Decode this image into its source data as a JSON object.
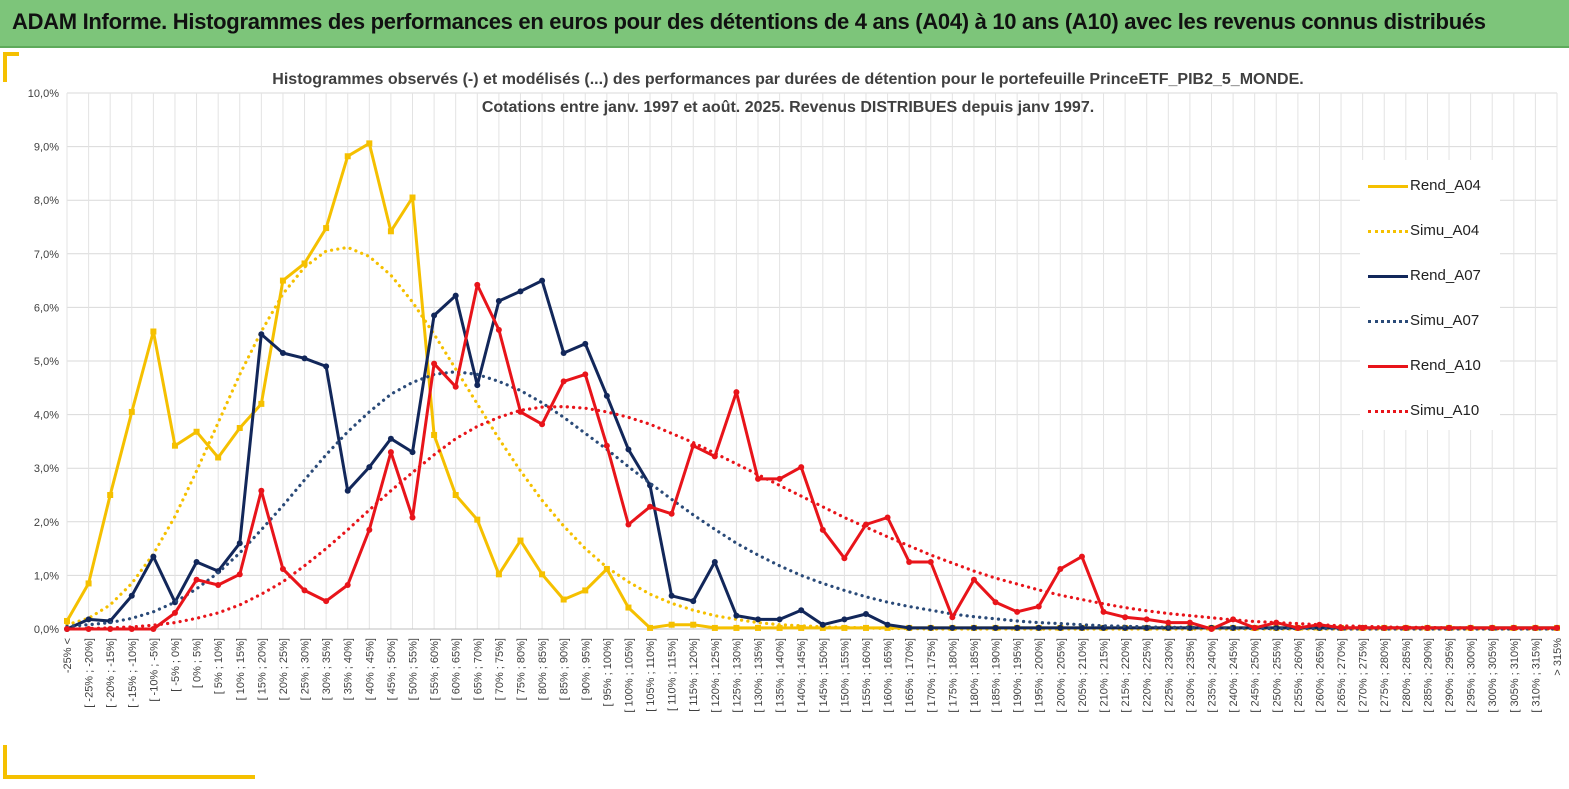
{
  "banner": {
    "title": "ADAM Informe. Histogrammes des performances en euros pour des détentions de 4 ans (A04) à 10 ans (A10) avec les revenus connus distribués"
  },
  "chart_data": {
    "type": "line",
    "title": "Histogrammes observés (-) et modélisés (...) des performances par durées de détention pour le portefeuille PrinceETF_PIB2_5_MONDE.",
    "subtitle": "Cotations entre janv. 1997 et août. 2025. Revenus DISTRIBUES depuis janv 1997.",
    "xlabel": "",
    "ylabel": "",
    "ylim": [
      0,
      10
    ],
    "yticks": [
      "0,0%",
      "1,0%",
      "2,0%",
      "3,0%",
      "4,0%",
      "5,0%",
      "6,0%",
      "7,0%",
      "8,0%",
      "9,0%",
      "10,0%"
    ],
    "grid": true,
    "legend_position": "right",
    "categories": [
      "-25% <",
      "[ -25% ; -20%]",
      "[ -20% ; -15%]",
      "[ -15% ; -10%]",
      "[ -10% ; -5%]",
      "[ -5% ; 0%]",
      "[ 0% ; 5%]",
      "[ 5% ; 10%]",
      "[ 10% ; 15%]",
      "[ 15% ; 20%]",
      "[ 20% ; 25%]",
      "[ 25% ; 30%]",
      "[ 30% ; 35%]",
      "[ 35% ; 40%]",
      "[ 40% ; 45%]",
      "[ 45% ; 50%]",
      "[ 50% ; 55%]",
      "[ 55% ; 60%]",
      "[ 60% ; 65%]",
      "[ 65% ; 70%]",
      "[ 70% ; 75%]",
      "[ 75% ; 80%]",
      "[ 80% ; 85%]",
      "[ 85% ; 90%]",
      "[ 90% ; 95%]",
      "[ 95% ; 100%]",
      "[ 100% ; 105%]",
      "[ 105% ; 110%]",
      "[ 110% ; 115%]",
      "[ 115% ; 120%]",
      "[ 120% ; 125%]",
      "[ 125% ; 130%]",
      "[ 130% ; 135%]",
      "[ 135% ; 140%]",
      "[ 140% ; 145%]",
      "[ 145% ; 150%]",
      "[ 150% ; 155%]",
      "[ 155% ; 160%]",
      "[ 160% ; 165%]",
      "[ 165% ; 170%]",
      "[ 170% ; 175%]",
      "[ 175% ; 180%]",
      "[ 180% ; 185%]",
      "[ 185% ; 190%]",
      "[ 190% ; 195%]",
      "[ 195% ; 200%]",
      "[ 200% ; 205%]",
      "[ 205% ; 210%]",
      "[ 210% ; 215%]",
      "[ 215% ; 220%]",
      "[ 220% ; 225%]",
      "[ 225% ; 230%]",
      "[ 230% ; 235%]",
      "[ 235% ; 240%]",
      "[ 240% ; 245%]",
      "[ 245% ; 250%]",
      "[ 250% ; 255%]",
      "[ 255% ; 260%]",
      "[ 260% ; 265%]",
      "[ 265% ; 270%]",
      "[ 270% ; 275%]",
      "[ 275% ; 280%]",
      "[ 280% ; 285%]",
      "[ 285% ; 290%]",
      "[ 290% ; 295%]",
      "[ 295% ; 300%]",
      "[ 300% ; 305%]",
      "[ 305% ; 310%]",
      "[ 310% ; 315%]",
      "> 315%"
    ],
    "series": [
      {
        "name": "Rend_A04",
        "color": "#f5c000",
        "style": "solid",
        "marker": "square",
        "values": [
          0.15,
          0.85,
          2.5,
          4.05,
          5.55,
          3.42,
          3.68,
          3.2,
          3.75,
          4.2,
          6.5,
          6.82,
          7.48,
          8.82,
          9.06,
          7.42,
          8.05,
          3.62,
          2.5,
          2.04,
          1.02,
          1.65,
          1.02,
          0.55,
          0.72,
          1.12,
          0.4,
          0.02,
          0.08,
          0.08,
          0.02,
          0.02,
          0.02,
          0.02,
          0.02,
          0.02,
          0.02,
          0.02,
          0.02,
          0.02,
          0.02,
          0.02,
          0.02,
          0.02,
          0.02,
          0.02,
          0.02,
          0.02,
          0.02,
          0.02,
          0.02,
          0.02,
          0.02,
          0.02,
          0.02,
          0.02,
          0.02,
          0.02,
          0.02,
          0.02,
          0.02,
          0.02,
          0.02,
          0.02,
          0.02,
          0.02,
          0.02,
          0.02,
          0.02,
          0.02
        ]
      },
      {
        "name": "Simu_A04",
        "color": "#f5c000",
        "style": "dotted",
        "values": [
          0.08,
          0.2,
          0.45,
          0.85,
          1.4,
          2.1,
          2.95,
          3.85,
          4.75,
          5.55,
          6.25,
          6.75,
          7.05,
          7.12,
          6.95,
          6.6,
          6.1,
          5.5,
          4.85,
          4.2,
          3.55,
          2.95,
          2.4,
          1.92,
          1.5,
          1.15,
          0.88,
          0.65,
          0.48,
          0.35,
          0.25,
          0.18,
          0.12,
          0.08,
          0.06,
          0.04,
          0.03,
          0.02,
          0.01,
          0.01,
          0.0,
          0.0,
          0.0,
          0.0,
          0.0,
          0.0,
          0.0,
          0.0,
          0.0,
          0.0,
          0.0,
          0.0,
          0.0,
          0.0,
          0.0,
          0.0,
          0.0,
          0.0,
          0.0,
          0.0,
          0.0,
          0.0,
          0.0,
          0.0,
          0.0,
          0.0,
          0.0,
          0.0,
          0.0,
          0.0
        ]
      },
      {
        "name": "Rend_A07",
        "color": "#12275a",
        "style": "solid",
        "marker": "circle",
        "values": [
          0.0,
          0.18,
          0.15,
          0.62,
          1.35,
          0.5,
          1.25,
          1.08,
          1.6,
          5.5,
          5.15,
          5.05,
          4.9,
          2.58,
          3.02,
          3.55,
          3.3,
          5.85,
          6.22,
          4.55,
          6.12,
          6.3,
          6.5,
          5.15,
          5.32,
          4.35,
          3.35,
          2.68,
          0.62,
          0.52,
          1.25,
          0.25,
          0.18,
          0.18,
          0.35,
          0.08,
          0.18,
          0.28,
          0.08,
          0.02,
          0.02,
          0.02,
          0.02,
          0.02,
          0.02,
          0.02,
          0.02,
          0.02,
          0.02,
          0.02,
          0.02,
          0.02,
          0.02,
          0.02,
          0.02,
          0.02,
          0.02,
          0.02,
          0.02,
          0.02,
          0.02,
          0.02,
          0.02,
          0.02,
          0.02,
          0.02,
          0.02,
          0.02,
          0.02,
          0.02
        ]
      },
      {
        "name": "Simu_A07",
        "color": "#2a4a78",
        "style": "dotted",
        "values": [
          0.05,
          0.08,
          0.12,
          0.2,
          0.32,
          0.5,
          0.75,
          1.05,
          1.42,
          1.85,
          2.3,
          2.78,
          3.25,
          3.68,
          4.05,
          4.38,
          4.6,
          4.75,
          4.8,
          4.75,
          4.62,
          4.45,
          4.22,
          3.95,
          3.65,
          3.35,
          3.03,
          2.72,
          2.42,
          2.13,
          1.86,
          1.6,
          1.38,
          1.18,
          1.0,
          0.85,
          0.72,
          0.6,
          0.5,
          0.42,
          0.35,
          0.28,
          0.23,
          0.19,
          0.15,
          0.12,
          0.1,
          0.08,
          0.06,
          0.05,
          0.04,
          0.03,
          0.03,
          0.02,
          0.02,
          0.01,
          0.01,
          0.01,
          0.01,
          0.0,
          0.0,
          0.0,
          0.0,
          0.0,
          0.0,
          0.0,
          0.0,
          0.0,
          0.0,
          0.0
        ]
      },
      {
        "name": "Rend_A10",
        "color": "#e8141a",
        "style": "solid",
        "marker": "circle",
        "values": [
          0.0,
          0.0,
          0.0,
          0.0,
          0.0,
          0.3,
          0.92,
          0.82,
          1.02,
          2.58,
          1.12,
          0.72,
          0.52,
          0.82,
          1.85,
          3.3,
          2.08,
          4.95,
          4.52,
          6.42,
          5.58,
          4.05,
          3.82,
          4.62,
          4.75,
          3.42,
          1.95,
          2.28,
          2.15,
          3.42,
          3.22,
          4.42,
          2.8,
          2.8,
          3.02,
          1.85,
          1.32,
          1.95,
          2.08,
          1.25,
          1.25,
          0.22,
          0.92,
          0.5,
          0.32,
          0.42,
          1.12,
          1.35,
          0.32,
          0.22,
          0.18,
          0.12,
          0.12,
          0.0,
          0.18,
          0.02,
          0.12,
          0.02,
          0.08,
          0.02,
          0.02,
          0.02,
          0.02,
          0.02,
          0.02,
          0.02,
          0.02,
          0.02,
          0.02,
          0.02
        ]
      },
      {
        "name": "Simu_A10",
        "color": "#e8141a",
        "style": "dotted",
        "values": [
          0.0,
          0.01,
          0.02,
          0.04,
          0.07,
          0.12,
          0.2,
          0.3,
          0.45,
          0.65,
          0.88,
          1.18,
          1.5,
          1.85,
          2.22,
          2.58,
          2.92,
          3.25,
          3.55,
          3.78,
          3.95,
          4.08,
          4.14,
          4.15,
          4.12,
          4.05,
          3.95,
          3.82,
          3.65,
          3.48,
          3.28,
          3.08,
          2.88,
          2.68,
          2.48,
          2.28,
          2.08,
          1.9,
          1.72,
          1.55,
          1.38,
          1.23,
          1.08,
          0.95,
          0.84,
          0.73,
          0.63,
          0.55,
          0.47,
          0.4,
          0.34,
          0.29,
          0.25,
          0.21,
          0.17,
          0.14,
          0.12,
          0.1,
          0.08,
          0.06,
          0.05,
          0.04,
          0.03,
          0.03,
          0.02,
          0.02,
          0.01,
          0.01,
          0.01,
          0.01
        ]
      }
    ]
  }
}
